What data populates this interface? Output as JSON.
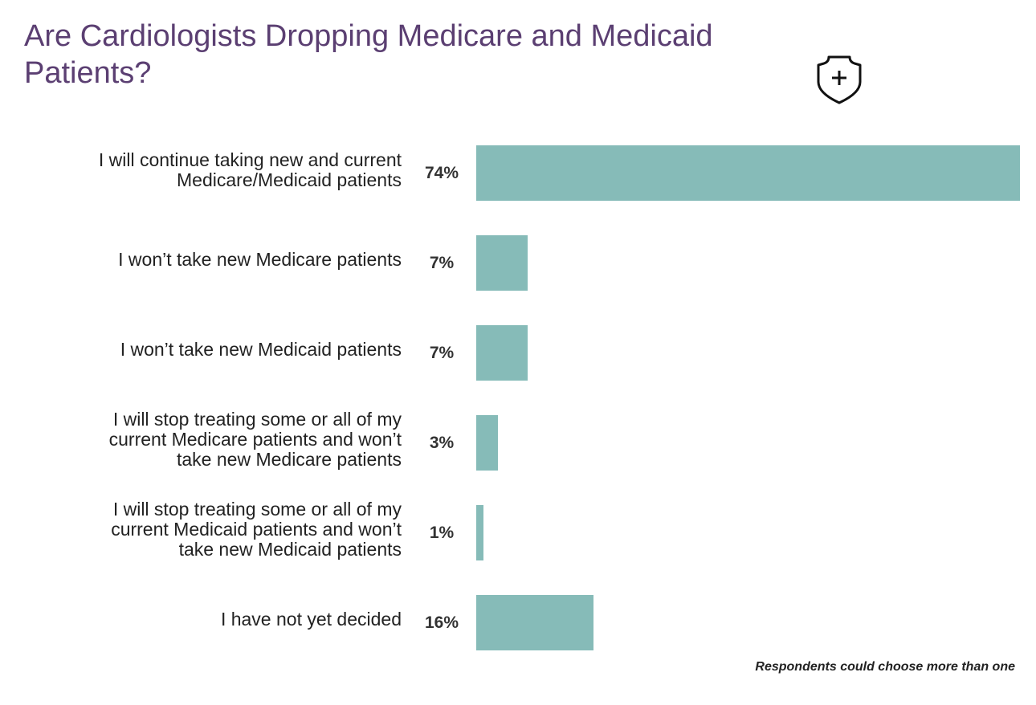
{
  "chart_data": {
    "type": "bar",
    "orientation": "horizontal",
    "title": "Are Cardiologists Dropping Medicare and Medicaid Patients?",
    "categories": [
      "I will continue taking new and current Medicare/Medicaid patients",
      "I won’t take new Medicare patients",
      "I won’t take new Medicaid patients",
      "I will stop treating some or all of my current Medicare patients and won’t take new Medicare patients",
      "I will stop treating some or all of my current Medicaid patients and won’t take new Medicaid patients",
      "I have not yet decided"
    ],
    "values": [
      74,
      7,
      7,
      3,
      1,
      16
    ],
    "data_labels": [
      "74%",
      "7%",
      "7%",
      "3%",
      "1%",
      "16%"
    ],
    "unit": "%",
    "xlim": [
      0,
      74
    ],
    "grid": false,
    "bar_color": "#86bbb8",
    "title_color": "#5b3f72",
    "note": "Respondents could choose more than one"
  },
  "icon": "shield-plus-icon"
}
